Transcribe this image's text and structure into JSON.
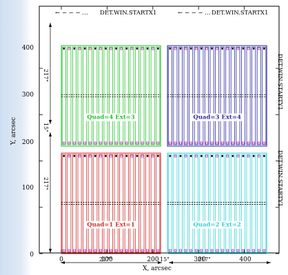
{
  "figure": {
    "x_axis_label": "X, arcsec",
    "y_axis_label": "Y, arcsec",
    "x_ticks": [
      0,
      100,
      200,
      300,
      400
    ],
    "y_ticks": [
      0,
      100,
      200,
      300,
      400
    ],
    "top_labels": [
      "DET.WIN.STARTX1",
      "DET.WIN.STARTX1"
    ],
    "right_labels": [
      "DET.WIN.STARTY1",
      "DET.WIN.STARTY1"
    ],
    "width_dim_label": "217\"",
    "gap_dim_label": "15\"",
    "height_dim_label": "217\"",
    "gap_dim_label_vertical": "15\"",
    "quadrants": [
      {
        "label": "Quad=1 Ext=1",
        "color": "#cc2a2a",
        "x0": 0,
        "y0": 0
      },
      {
        "label": "Quad=2 Ext=2",
        "color": "#34d0d6",
        "x0": 232,
        "y0": 0
      },
      {
        "label": "Quad=3 Ext=4",
        "color": "#2b2b9c",
        "x0": 232,
        "y0": 232
      },
      {
        "label": "Quad=4 Ext=3",
        "color": "#26c12b",
        "x0": 0,
        "y0": 232
      }
    ],
    "quadrant_size": 217,
    "slits_per_quadrant": 19,
    "dot_color": "#000000",
    "square_color": "#c030c0"
  }
}
